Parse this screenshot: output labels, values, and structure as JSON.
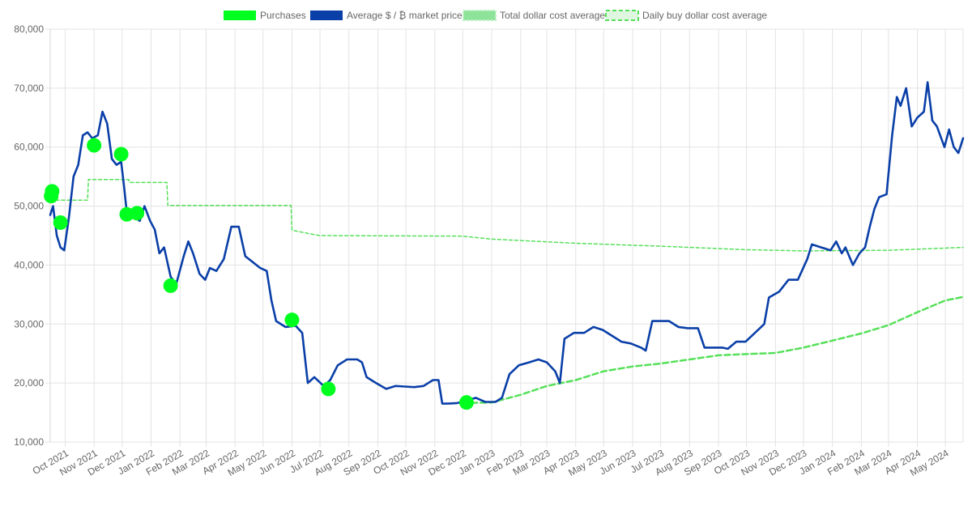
{
  "chart_data": {
    "type": "line",
    "legend": {
      "placement": "top-center",
      "items": [
        {
          "key": "purchases",
          "label": "Purchases",
          "color": "#00ff1e",
          "style": "filled-box"
        },
        {
          "key": "market",
          "label": "Average $ / ₿ market price",
          "color": "#0a3fa8",
          "style": "filled-box"
        },
        {
          "key": "total_dca",
          "label": "Total dollar cost average",
          "color": "#8ee39a",
          "style": "filled-box-wavy-border"
        },
        {
          "key": "daily_dca",
          "label": "Daily buy dollar cost average",
          "color": "#56e05a",
          "style": "dashed-box"
        }
      ]
    },
    "y_axis": {
      "min": 10000,
      "max": 80000,
      "tick_labels": [
        "10,000",
        "20,000",
        "30,000",
        "40,000",
        "50,000",
        "60,000",
        "70,000",
        "80,000"
      ],
      "tick_values": [
        10000,
        20000,
        30000,
        40000,
        50000,
        60000,
        70000,
        80000
      ],
      "grid": true
    },
    "x_axis": {
      "start": "2021-09-15",
      "end": "2024-05-20",
      "tick_labels": [
        "Oct 2021",
        "Nov 2021",
        "Dec 2021",
        "Jan 2022",
        "Feb 2022",
        "Mar 2022",
        "Apr 2022",
        "May 2022",
        "Jun 2022",
        "Jul 2022",
        "Aug 2022",
        "Sep 2022",
        "Oct 2022",
        "Nov 2022",
        "Dec 2022",
        "Jan 2023",
        "Feb 2023",
        "Mar 2023",
        "Apr 2023",
        "May 2023",
        "Jun 2023",
        "Jul 2023",
        "Aug 2023",
        "Sep 2023",
        "Oct 2023",
        "Nov 2023",
        "Dec 2023",
        "Jan 2024",
        "Feb 2024",
        "Mar 2024",
        "Apr 2024",
        "May 2024"
      ],
      "tick_dates": [
        "2021-10-01",
        "2021-11-01",
        "2021-12-01",
        "2022-01-01",
        "2022-02-01",
        "2022-03-01",
        "2022-04-01",
        "2022-05-01",
        "2022-06-01",
        "2022-07-01",
        "2022-08-01",
        "2022-09-01",
        "2022-10-01",
        "2022-11-01",
        "2022-12-01",
        "2023-01-01",
        "2023-02-01",
        "2023-03-01",
        "2023-04-01",
        "2023-05-01",
        "2023-06-01",
        "2023-07-01",
        "2023-08-01",
        "2023-09-01",
        "2023-10-01",
        "2023-11-01",
        "2023-12-01",
        "2024-01-01",
        "2024-02-01",
        "2024-03-01",
        "2024-04-01",
        "2024-05-01"
      ],
      "grid": true
    },
    "series": [
      {
        "name": "Average $ / ₿ market price",
        "x": [
          "2021-09-15",
          "2021-09-18",
          "2021-09-22",
          "2021-09-26",
          "2021-09-30",
          "2021-10-05",
          "2021-10-10",
          "2021-10-15",
          "2021-10-20",
          "2021-10-25",
          "2021-10-30",
          "2021-11-05",
          "2021-11-10",
          "2021-11-15",
          "2021-11-20",
          "2021-11-25",
          "2021-11-30",
          "2021-12-03",
          "2021-12-06",
          "2021-12-10",
          "2021-12-15",
          "2021-12-20",
          "2021-12-25",
          "2021-12-31",
          "2022-01-05",
          "2022-01-10",
          "2022-01-15",
          "2022-01-22",
          "2022-01-28",
          "2022-02-05",
          "2022-02-10",
          "2022-02-15",
          "2022-02-22",
          "2022-02-28",
          "2022-03-05",
          "2022-03-12",
          "2022-03-20",
          "2022-03-28",
          "2022-04-05",
          "2022-04-12",
          "2022-04-20",
          "2022-04-28",
          "2022-05-05",
          "2022-05-10",
          "2022-05-15",
          "2022-05-25",
          "2022-06-05",
          "2022-06-12",
          "2022-06-18",
          "2022-06-25",
          "2022-07-05",
          "2022-07-12",
          "2022-07-20",
          "2022-07-30",
          "2022-08-10",
          "2022-08-15",
          "2022-08-20",
          "2022-08-30",
          "2022-09-10",
          "2022-09-20",
          "2022-09-30",
          "2022-10-10",
          "2022-10-20",
          "2022-10-30",
          "2022-11-05",
          "2022-11-09",
          "2022-11-15",
          "2022-11-25",
          "2022-12-05",
          "2022-12-15",
          "2022-12-25",
          "2023-01-05",
          "2023-01-12",
          "2023-01-20",
          "2023-01-30",
          "2023-02-10",
          "2023-02-20",
          "2023-03-01",
          "2023-03-10",
          "2023-03-15",
          "2023-03-20",
          "2023-03-30",
          "2023-04-10",
          "2023-04-20",
          "2023-04-30",
          "2023-05-10",
          "2023-05-20",
          "2023-05-30",
          "2023-06-10",
          "2023-06-15",
          "2023-06-22",
          "2023-06-30",
          "2023-07-10",
          "2023-07-20",
          "2023-07-30",
          "2023-08-10",
          "2023-08-17",
          "2023-08-25",
          "2023-09-05",
          "2023-09-11",
          "2023-09-20",
          "2023-09-30",
          "2023-10-10",
          "2023-10-20",
          "2023-10-25",
          "2023-11-05",
          "2023-11-15",
          "2023-11-25",
          "2023-12-05",
          "2023-12-10",
          "2023-12-20",
          "2023-12-30",
          "2024-01-05",
          "2024-01-11",
          "2024-01-15",
          "2024-01-23",
          "2024-01-30",
          "2024-02-05",
          "2024-02-10",
          "2024-02-15",
          "2024-02-20",
          "2024-02-28",
          "2024-03-05",
          "2024-03-10",
          "2024-03-14",
          "2024-03-20",
          "2024-03-26",
          "2024-04-01",
          "2024-04-08",
          "2024-04-12",
          "2024-04-17",
          "2024-04-22",
          "2024-04-30",
          "2024-05-05",
          "2024-05-10",
          "2024-05-15",
          "2024-05-20"
        ],
        "y": [
          48500,
          50000,
          45000,
          43000,
          42500,
          48000,
          55000,
          57000,
          62000,
          62500,
          61500,
          62000,
          66000,
          64000,
          58000,
          57000,
          57500,
          53500,
          49000,
          48000,
          48000,
          47500,
          50000,
          47500,
          46000,
          42000,
          43000,
          38000,
          36800,
          41500,
          44000,
          42000,
          38500,
          37500,
          39500,
          39000,
          41000,
          46500,
          46500,
          41500,
          40500,
          39500,
          39000,
          34000,
          30500,
          29500,
          29700,
          28500,
          20000,
          21000,
          19500,
          20500,
          23000,
          24000,
          24000,
          23500,
          21000,
          20000,
          19000,
          19500,
          19400,
          19300,
          19500,
          20500,
          20500,
          16500,
          16500,
          16600,
          17000,
          17500,
          16800,
          16800,
          17500,
          21500,
          23000,
          23500,
          24000,
          23500,
          22000,
          20000,
          27500,
          28500,
          28500,
          29500,
          29000,
          28000,
          27000,
          26700,
          26000,
          25500,
          30500,
          30500,
          30500,
          29500,
          29300,
          29300,
          26000,
          26000,
          26000,
          25800,
          27000,
          27000,
          28500,
          30000,
          34500,
          35500,
          37500,
          37500,
          41000,
          43500,
          43000,
          42500,
          44000,
          42000,
          43000,
          40000,
          42000,
          43000,
          46500,
          49500,
          51500,
          52000,
          62000,
          68500,
          67000,
          70000,
          63500,
          65000,
          66000,
          71000,
          64500,
          63500,
          60000,
          63000,
          60000,
          59000,
          61500
        ]
      },
      {
        "name": "Total dollar cost average",
        "x": [
          "2022-12-01",
          "2023-01-01",
          "2023-02-01",
          "2023-03-01",
          "2023-04-01",
          "2023-05-01",
          "2023-06-01",
          "2023-07-01",
          "2023-08-01",
          "2023-09-01",
          "2023-10-01",
          "2023-11-01",
          "2023-12-01",
          "2024-01-01",
          "2024-02-01",
          "2024-03-01",
          "2024-04-01",
          "2024-05-01",
          "2024-05-20"
        ],
        "y": [
          16600,
          16700,
          18000,
          19500,
          20500,
          22000,
          22800,
          23300,
          24000,
          24700,
          24900,
          25100,
          26000,
          27200,
          28400,
          29800,
          32000,
          34000,
          34600
        ]
      },
      {
        "name": "Daily buy dollar cost average",
        "x": [
          "2021-09-15",
          "2021-10-25",
          "2021-10-26",
          "2021-12-08",
          "2021-12-09",
          "2022-01-18",
          "2022-01-19",
          "2022-05-31",
          "2022-06-01",
          "2022-06-20",
          "2022-07-01",
          "2022-12-01",
          "2023-01-01",
          "2023-04-01",
          "2023-07-01",
          "2023-10-01",
          "2023-12-01",
          "2024-03-01",
          "2024-05-20"
        ],
        "y": [
          51000,
          51000,
          54500,
          54500,
          54000,
          54000,
          50100,
          50100,
          45900,
          45300,
          45000,
          44900,
          44400,
          43700,
          43200,
          42600,
          42400,
          42500,
          43000
        ]
      }
    ],
    "purchases": {
      "x": [
        "2021-09-16",
        "2021-09-17",
        "2021-09-26",
        "2021-11-01",
        "2021-11-30",
        "2021-12-06",
        "2021-12-17",
        "2022-01-22",
        "2022-06-01",
        "2022-07-10",
        "2022-12-05"
      ],
      "y": [
        51700,
        52500,
        47200,
        60300,
        58800,
        48600,
        48800,
        36500,
        30700,
        19000,
        16700
      ]
    }
  }
}
